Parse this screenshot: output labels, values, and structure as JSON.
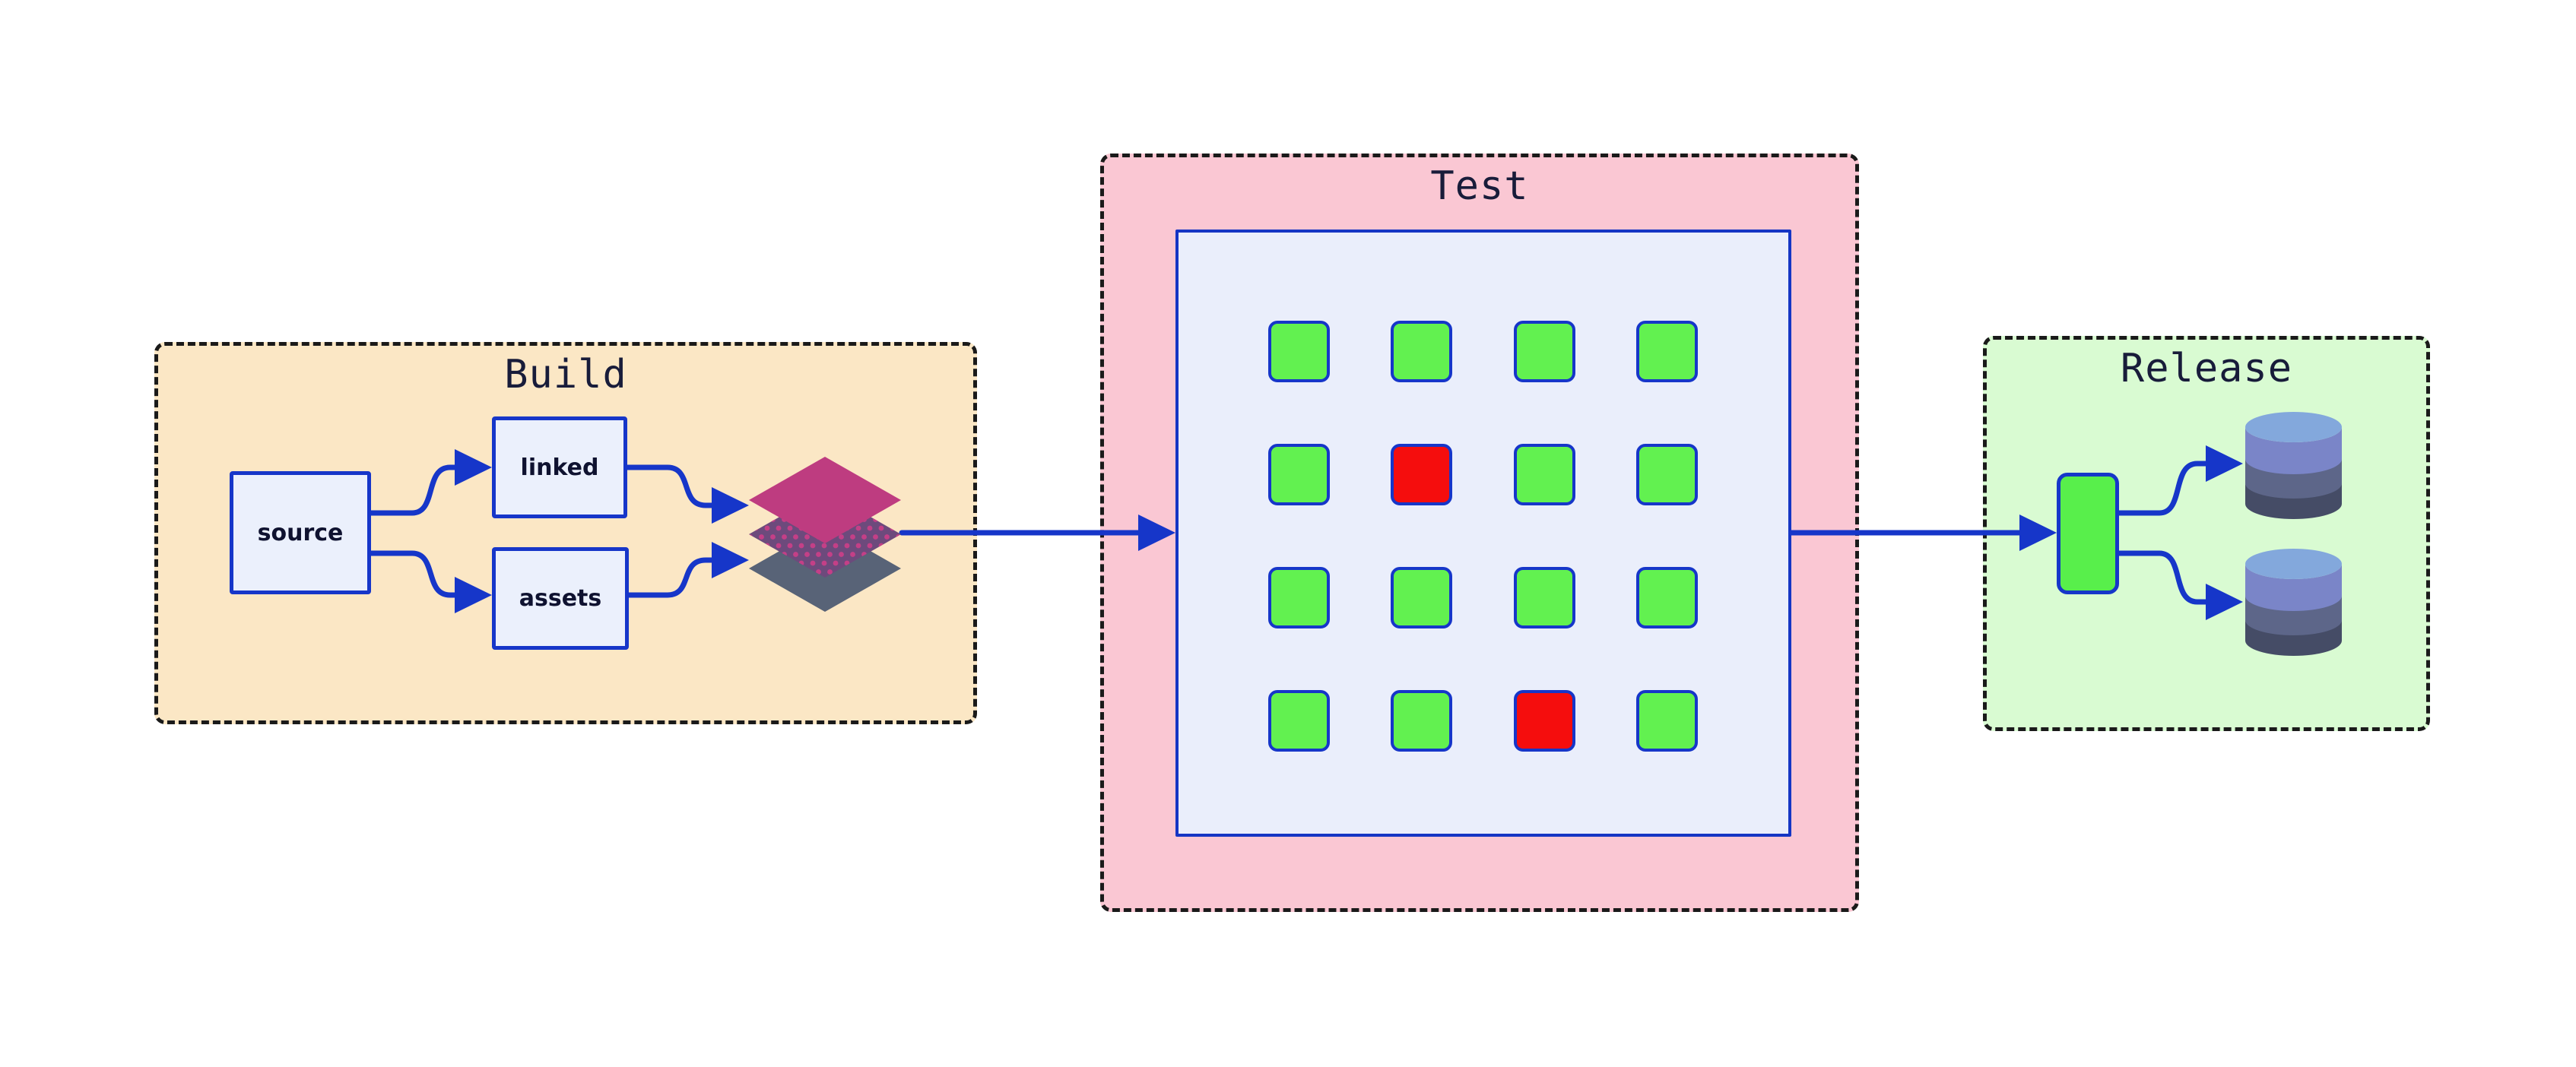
{
  "diagram": {
    "type": "pipeline",
    "stages": {
      "build": {
        "title": "Build",
        "bg_color": "#FBE7C5",
        "nodes": {
          "source": {
            "label": "source"
          },
          "linked": {
            "label": "linked"
          },
          "assets": {
            "label": "assets"
          }
        },
        "artifact_icon": "layers-icon"
      },
      "test": {
        "title": "Test",
        "bg_color": "#FAC7D3",
        "grid": {
          "rows": 4,
          "cols": 4,
          "pass_color": "#62F150",
          "fail_color": "#F50D0D",
          "cells": [
            [
              "pass",
              "pass",
              "pass",
              "pass"
            ],
            [
              "pass",
              "fail",
              "pass",
              "pass"
            ],
            [
              "pass",
              "pass",
              "pass",
              "pass"
            ],
            [
              "pass",
              "pass",
              "fail",
              "pass"
            ]
          ]
        }
      },
      "release": {
        "title": "Release",
        "bg_color": "#D9FBD2",
        "target_icon": "database-icon",
        "target_count": 2
      }
    },
    "colors": {
      "accent_blue": "#1636C9",
      "dashed_border": "#1A1A1A",
      "title_text": "#181C3A",
      "node_fill": "#EBF0FC",
      "layer_top": "#BE3C80",
      "layer_middle": "#6D4A7C",
      "layer_dots": "#C43F87",
      "layer_bottom": "#586377",
      "db_top_face": "#83A8DC",
      "db_band_1": "#7A85C8",
      "db_band_2": "#5D6689",
      "db_band_3": "#454C66"
    }
  }
}
